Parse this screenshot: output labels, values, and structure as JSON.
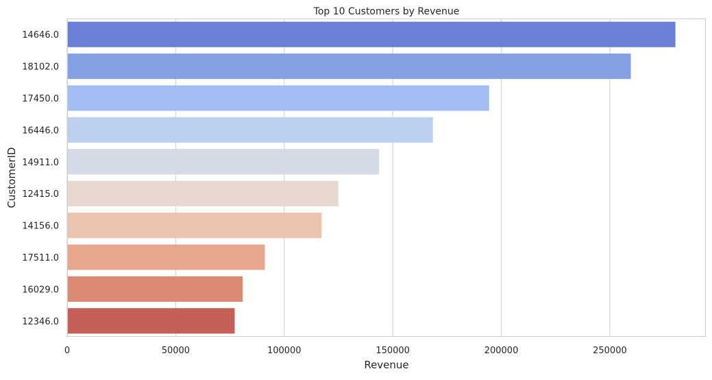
{
  "chart_data": {
    "type": "bar",
    "orientation": "horizontal",
    "title": "Top 10 Customers by Revenue",
    "xlabel": "Revenue",
    "ylabel": "CustomerID",
    "categories": [
      "14646.0",
      "18102.0",
      "17450.0",
      "16446.0",
      "14911.0",
      "12415.0",
      "14156.0",
      "17511.0",
      "16029.0",
      "12346.0"
    ],
    "values": [
      280206,
      259657,
      194391,
      168473,
      143711,
      124915,
      117210,
      91063,
      80850,
      77184
    ],
    "bar_colors": [
      "#6a80d6",
      "#84a1e6",
      "#a2bdf2",
      "#bdd0f0",
      "#d5dbe6",
      "#e6d7cf",
      "#ecc4b0",
      "#e8a78d",
      "#db8a71",
      "#c46055"
    ],
    "xlim": [
      0,
      294216
    ],
    "x_ticks": [
      0,
      50000,
      100000,
      150000,
      200000,
      250000
    ],
    "x_tick_labels": [
      "0",
      "50000",
      "100000",
      "150000",
      "200000",
      "250000"
    ],
    "grid": "vertical",
    "legend": "none"
  }
}
